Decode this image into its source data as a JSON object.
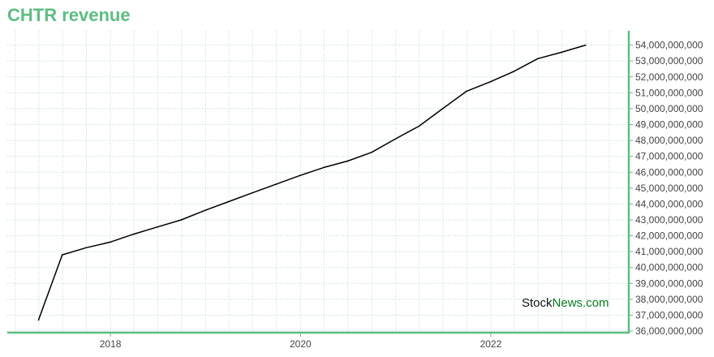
{
  "title": "CHTR revenue",
  "watermark": {
    "part1": "Stock",
    "part2": "News.com"
  },
  "colors": {
    "title": "#5dbd83",
    "axis": "#5dbd83",
    "grid": "#b5ddc8",
    "line": "#000000"
  },
  "chart_data": {
    "type": "line",
    "title": "CHTR revenue",
    "xlabel": "",
    "ylabel": "",
    "x_ticks": [
      "2018",
      "2020",
      "2022"
    ],
    "y_ticks": [
      "36,000,000,000",
      "37,000,000,000",
      "38,000,000,000",
      "39,000,000,000",
      "40,000,000,000",
      "41,000,000,000",
      "42,000,000,000",
      "43,000,000,000",
      "44,000,000,000",
      "45,000,000,000",
      "46,000,000,000",
      "47,000,000,000",
      "48,000,000,000",
      "49,000,000,000",
      "50,000,000,000",
      "51,000,000,000",
      "52,000,000,000",
      "53,000,000,000",
      "54,000,000,000"
    ],
    "ylim": [
      35900000000,
      54900000000
    ],
    "xlim": [
      "2016-12-01",
      "2023-06-15"
    ],
    "grid": true,
    "y_axis_position": "right",
    "series": [
      {
        "x": [
          "2017-03-31",
          "2017-06-30",
          "2017-09-30",
          "2017-12-31",
          "2018-03-31",
          "2018-06-30",
          "2018-09-30",
          "2018-12-31",
          "2019-03-31",
          "2019-06-30",
          "2019-09-30",
          "2019-12-31",
          "2020-03-31",
          "2020-06-30",
          "2020-09-30",
          "2020-12-31",
          "2021-03-31",
          "2021-06-30",
          "2021-09-30",
          "2021-12-31",
          "2022-03-31",
          "2022-06-30",
          "2022-09-30",
          "2022-12-31"
        ],
        "values": [
          36700000000,
          40800000000,
          41250000000,
          41600000000,
          42100000000,
          42550000000,
          43000000000,
          43600000000,
          44150000000,
          44700000000,
          45250000000,
          45800000000,
          46300000000,
          46700000000,
          47250000000,
          48100000000,
          48900000000,
          50000000000,
          51100000000,
          51700000000,
          52350000000,
          53150000000,
          53550000000,
          54000000000
        ]
      }
    ]
  }
}
